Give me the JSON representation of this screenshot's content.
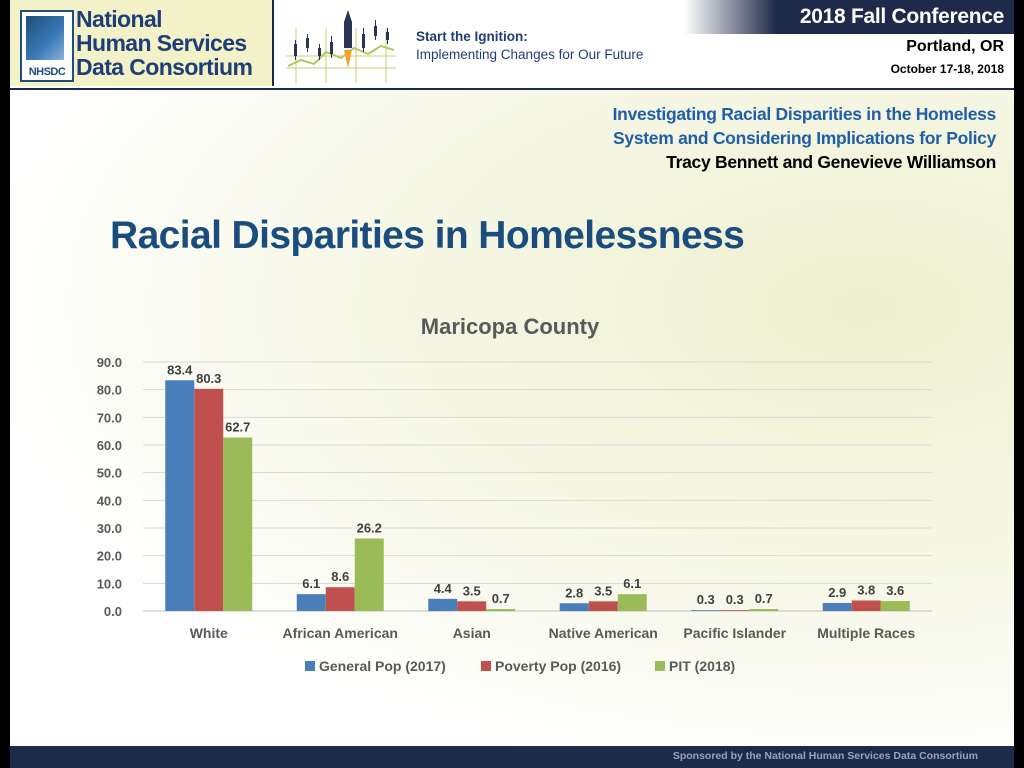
{
  "header": {
    "logo_lines": [
      "National",
      "Human Services",
      "Data Consortium"
    ],
    "logo_abbr": "NHSDC",
    "tagline_title": "Start the Ignition:",
    "tagline_sub": "Implementing Changes for Our Future",
    "conference": "2018 Fall Conference",
    "city": "Portland, OR",
    "dates": "October 17-18, 2018"
  },
  "session": {
    "title_line1": "Investigating Racial Disparities in the Homeless",
    "title_line2": "System and Considering Implications for Policy",
    "authors": "Tracy Bennett and Genevieve Williamson"
  },
  "slide_title": "Racial Disparities in Homelessness",
  "footer": "Sponsored by the National Human Services Data Consortium",
  "chart_data": {
    "type": "bar",
    "title": "Maricopa County",
    "categories": [
      "White",
      "African American",
      "Asian",
      "Native American",
      "Pacific Islander",
      "Multiple Races"
    ],
    "series": [
      {
        "name": "General Pop (2017)",
        "color": "#4a7ebb",
        "values": [
          83.4,
          6.1,
          4.4,
          2.8,
          0.3,
          2.9
        ]
      },
      {
        "name": "Poverty Pop (2016)",
        "color": "#c0504d",
        "values": [
          80.3,
          8.6,
          3.5,
          3.5,
          0.3,
          3.8
        ]
      },
      {
        "name": "PIT (2018)",
        "color": "#9bbb59",
        "values": [
          62.7,
          26.2,
          0.7,
          6.1,
          0.7,
          3.6
        ]
      }
    ],
    "ylim": [
      0,
      90
    ],
    "yticks": [
      "0.0",
      "10.0",
      "20.0",
      "30.0",
      "40.0",
      "50.0",
      "60.0",
      "70.0",
      "80.0",
      "90.0"
    ],
    "grid": true,
    "legend_position": "bottom"
  }
}
